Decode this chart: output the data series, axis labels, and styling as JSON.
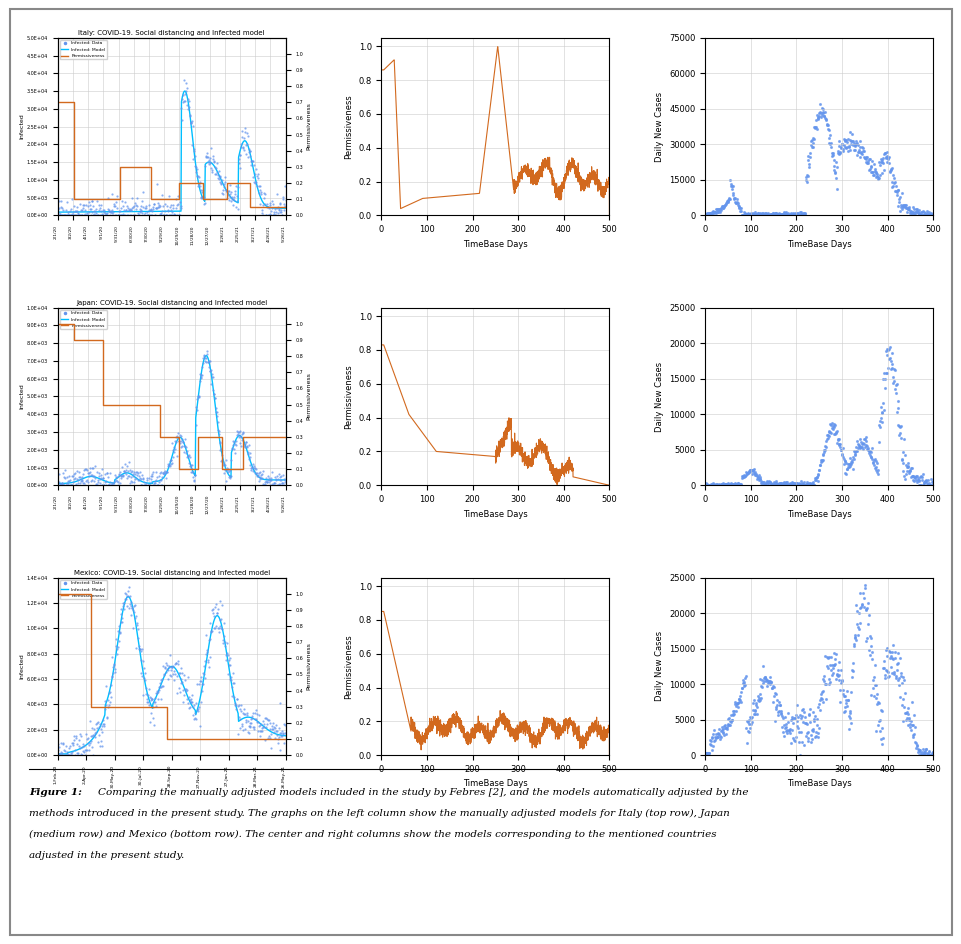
{
  "italy_title": "Italy: COVID-19. Social distancing and Infected model",
  "japan_title": "Japan: COVID-19. Social distancing and Infected model",
  "mexico_title": "Mexico: COVID-19. Social distancing and Infected model",
  "orange_color": "#D2691E",
  "blue_scatter_color": "#6495ED",
  "cyan_line_color": "#00BFFF",
  "grid_color": "#CCCCCC",
  "italy_dates": [
    "2/1/20",
    "3/2/20",
    "4/1/20",
    "5/1/20",
    "5/31/20",
    "6/30/20",
    "7/30/20",
    "9/29/20",
    "10/29/20",
    "11/28/20",
    "12/27/20",
    "1/26/21",
    "2/25/21",
    "3/27/21",
    "4/26/21",
    "5/26/21"
  ],
  "japan_dates": [
    "2/1/20",
    "3/2/20",
    "4/1/20",
    "5/1/20",
    "5/31/20",
    "6/30/20",
    "7/30/20",
    "9/29/20",
    "10/29/20",
    "11/28/20",
    "12/27/20",
    "1/26/21",
    "2/25/21",
    "3/27/21",
    "4/26/21",
    "5/26/21"
  ],
  "mexico_dates": [
    "1-Feb-20",
    "2-Apr-20",
    "30-May-20",
    "30-Jul-20",
    "28-Sep-20",
    "27-Nov-20",
    "27-Jan-21",
    "28-Mar-21",
    "26-May-21"
  ],
  "caption_bold": "Figure 1: ",
  "caption_normal": "Comparing the manually adjusted models included in the study by Febres [2], and the models automatically adjusted by the methods introduced in the present study. The graphs on the left column show the manually adjusted models for Italy (top row), Japan (medium row) and Mexico (bottom row). The center and right columns show the models corresponding to the mentioned countries adjusted in the present study."
}
